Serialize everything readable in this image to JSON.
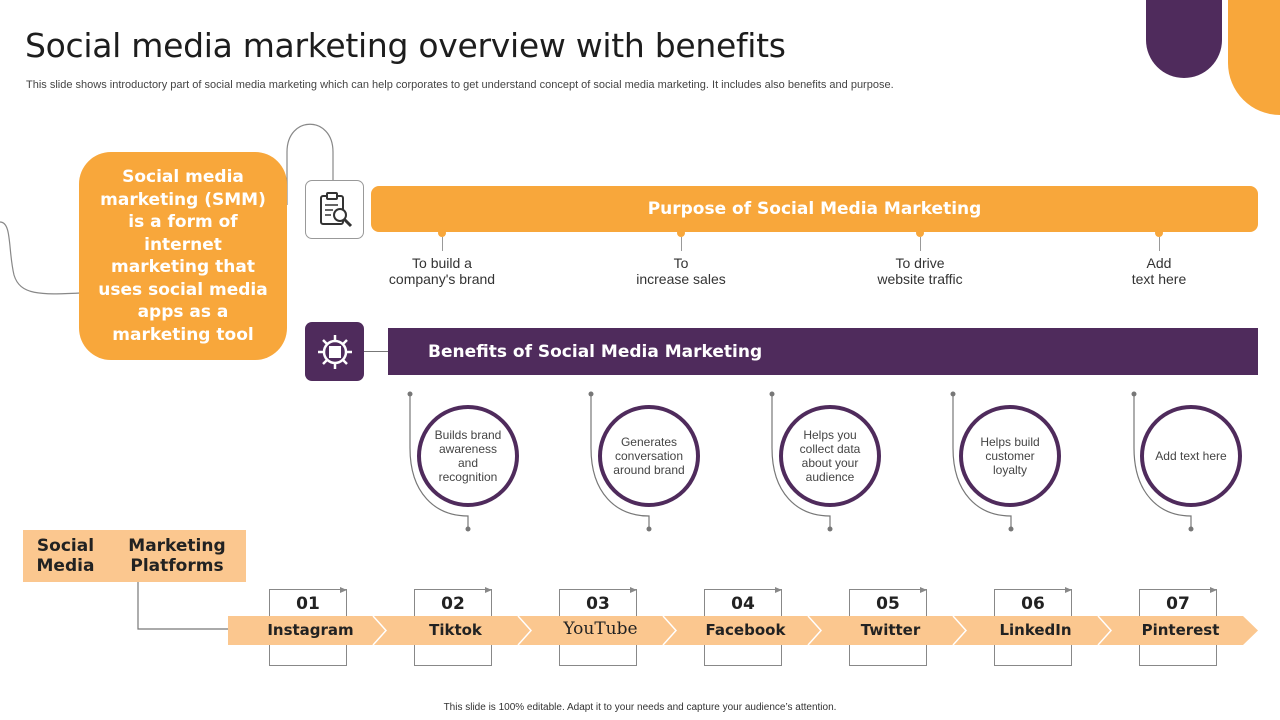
{
  "slide": {
    "title": "Social media marketing overview with benefits",
    "subtitle": "This slide shows introductory part of social media marketing which can help corporates to get understand concept of social media marketing. It includes also benefits and purpose.",
    "footer": "This slide is 100% editable. Adapt it to your needs and capture your audience’s attention."
  },
  "colors": {
    "orange": "#f8a73b",
    "purple": "#4f2b5c",
    "light_orange": "#fbc78f"
  },
  "definition": {
    "text": "Social media marketing (SMM) is a form of internet marketing that uses social media apps as a marketing tool"
  },
  "icons": {
    "purpose": "clipboard-magnifier-icon",
    "benefits": "gear-icon"
  },
  "purpose": {
    "heading": "Purpose of Social Media Marketing",
    "items": [
      {
        "line1": "To build a",
        "line2": "company's brand"
      },
      {
        "line1": "To",
        "line2": "increase sales"
      },
      {
        "line1": "To drive",
        "line2": "website traffic"
      },
      {
        "line1": "Add",
        "line2": "text here"
      }
    ]
  },
  "benefits": {
    "heading": "Benefits of Social Media Marketing",
    "items": [
      "Builds brand awareness and recognition",
      "Generates conversation around brand",
      "Helps you collect data about your audience",
      "Helps build customer loyalty",
      "Add text here"
    ]
  },
  "platforms": {
    "heading_line1": "Social Media",
    "heading_line2": "Marketing Platforms",
    "items": [
      {
        "num": "01",
        "name": "Instagram"
      },
      {
        "num": "02",
        "name": "Tiktok"
      },
      {
        "num": "03",
        "name": "YouTube"
      },
      {
        "num": "04",
        "name": "Facebook"
      },
      {
        "num": "05",
        "name": "Twitter"
      },
      {
        "num": "06",
        "name": "LinkedIn"
      },
      {
        "num": "07",
        "name": "Pinterest"
      }
    ]
  }
}
